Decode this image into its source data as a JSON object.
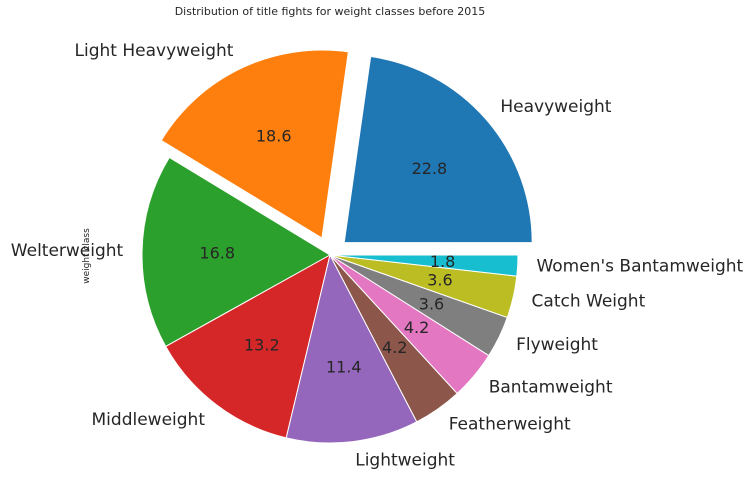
{
  "chart_data": {
    "type": "pie",
    "title": "Distribution of title fights for weight classes before 2015",
    "ylabel": "weight class",
    "categories": [
      "Heavyweight",
      "Light Heavyweight",
      "Welterweight",
      "Middleweight",
      "Lightweight",
      "Featherweight",
      "Bantamweight",
      "Flyweight",
      "Catch Weight",
      "Women's Bantamweight"
    ],
    "values": [
      22.8,
      18.6,
      16.8,
      13.2,
      11.4,
      4.2,
      4.2,
      3.6,
      3.6,
      1.8
    ],
    "value_labels": [
      "22.8",
      "18.6",
      "16.8",
      "13.2",
      "11.4",
      "4.2",
      "4.2",
      "3.6",
      "3.6",
      "1.8"
    ],
    "colors": [
      "#1f77b4",
      "#ff7f0e",
      "#2ca02c",
      "#d62728",
      "#9467bd",
      "#8c564b",
      "#e377c2",
      "#7f7f7f",
      "#bcbd22",
      "#17becf"
    ],
    "exploded": [
      true,
      true,
      false,
      false,
      false,
      false,
      false,
      false,
      false,
      false
    ],
    "start_angle_deg": 0,
    "direction": "counterclockwise"
  }
}
